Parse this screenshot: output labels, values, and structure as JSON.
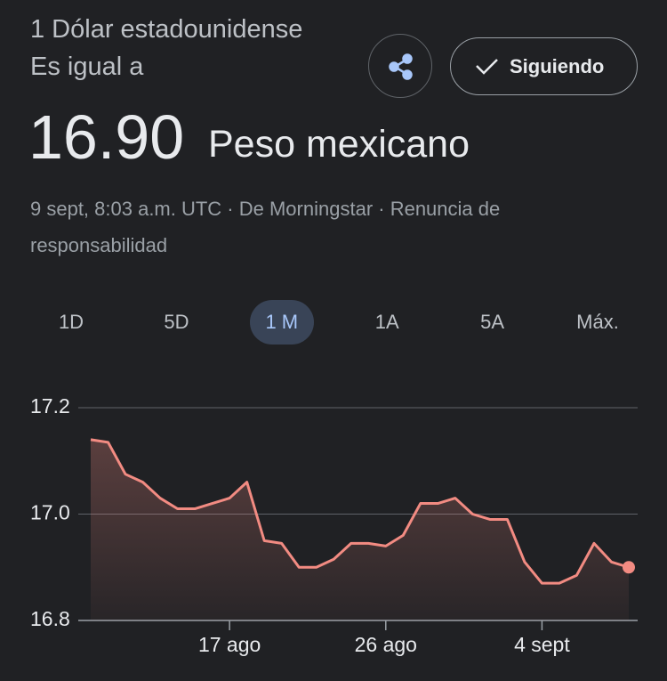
{
  "header": {
    "from_text": "1 Dólar estadounidense Es igual a",
    "amount": "16.90",
    "currency": "Peso mexicano",
    "source": "9 sept, 8:03 a.m. UTC · De Morningstar ·",
    "disclaimer": "Renuncia de responsabilidad",
    "follow_button": "Siguiendo"
  },
  "ranges": {
    "options": [
      "1D",
      "5D",
      "1 M",
      "1A",
      "5A",
      "Máx."
    ],
    "selected": 2
  },
  "chart_data": {
    "type": "line",
    "color": "#f28b82",
    "area": true,
    "grid": true,
    "categories": [
      null,
      null,
      null,
      null,
      null,
      null,
      null,
      null,
      "17 ago",
      null,
      null,
      null,
      null,
      null,
      null,
      null,
      null,
      "26 ago",
      null,
      null,
      null,
      null,
      null,
      null,
      null,
      null,
      "4 sept",
      null,
      null,
      null,
      null,
      null
    ],
    "values": [
      17.14,
      17.135,
      17.075,
      17.06,
      17.03,
      17.01,
      17.01,
      17.02,
      17.03,
      17.06,
      16.95,
      16.945,
      16.9,
      16.9,
      16.915,
      16.945,
      16.945,
      16.94,
      16.96,
      17.02,
      17.02,
      17.03,
      17.0,
      16.99,
      16.99,
      16.91,
      16.87,
      16.87,
      16.885,
      16.945,
      16.91,
      16.9
    ],
    "ylim": [
      16.8,
      17.2
    ],
    "yticks": [
      16.8,
      {
        "value": 17,
        "label": "17.0"
      },
      17.2
    ]
  }
}
